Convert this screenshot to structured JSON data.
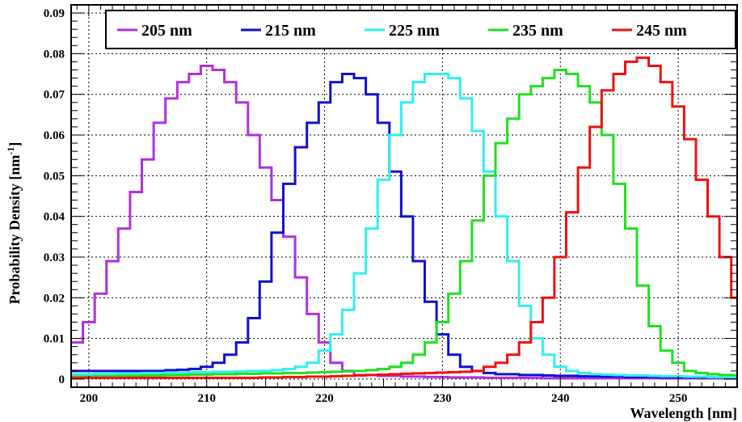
{
  "chart_data": {
    "type": "line",
    "xlabel": "Wavelength [nm]",
    "ylabel": "Probability Density [nm",
    "ylabel_sup": "-1",
    "ylabel_close": "]",
    "xlim": [
      198.5,
      255
    ],
    "ylim": [
      -0.002,
      0.092
    ],
    "x_ticks": [
      200,
      210,
      220,
      230,
      240,
      250
    ],
    "x_tick_labels": [
      "200",
      "210",
      "220",
      "230",
      "240",
      "250"
    ],
    "y_ticks": [
      0,
      0.01,
      0.02,
      0.03,
      0.04,
      0.05,
      0.06,
      0.07,
      0.08,
      0.09
    ],
    "y_tick_labels": [
      "0",
      "0.01",
      "0.02",
      "0.03",
      "0.04",
      "0.05",
      "0.06",
      "0.07",
      "0.08",
      "0.09"
    ],
    "grid": true,
    "legend_position": "top",
    "bin_width": 1,
    "x_start": 198.5,
    "series": [
      {
        "name": "205 nm",
        "color": "#B030E0",
        "values": [
          0.009,
          0.014,
          0.021,
          0.029,
          0.037,
          0.046,
          0.054,
          0.063,
          0.069,
          0.073,
          0.075,
          0.077,
          0.076,
          0.073,
          0.068,
          0.06,
          0.052,
          0.044,
          0.035,
          0.025,
          0.016,
          0.009,
          0.004,
          0.002,
          0.001,
          0.001,
          0.0008,
          0.0008,
          0.0006,
          0.0006,
          0.0005,
          0.0005,
          0.0004,
          0.0004,
          0.0004,
          0.0003,
          0.0003,
          0.0003,
          0.0003,
          0.0003,
          0.0002,
          0.0002,
          0.0002,
          0.0002,
          0.0002,
          0.0002,
          0.0002,
          0.0002,
          0.0002,
          0.0002,
          0.0002,
          0.0002,
          0.0002,
          0.0002,
          0.0002,
          0.0002,
          0.0002
        ]
      },
      {
        "name": "215 nm",
        "color": "#1010D0",
        "values": [
          0.002,
          0.002,
          0.002,
          0.002,
          0.002,
          0.002,
          0.002,
          0.002,
          0.0022,
          0.0023,
          0.0025,
          0.003,
          0.004,
          0.006,
          0.009,
          0.015,
          0.024,
          0.036,
          0.048,
          0.057,
          0.063,
          0.068,
          0.073,
          0.075,
          0.074,
          0.07,
          0.063,
          0.051,
          0.04,
          0.029,
          0.019,
          0.011,
          0.006,
          0.003,
          0.002,
          0.0015,
          0.0012,
          0.0012,
          0.001,
          0.001,
          0.0009,
          0.0008,
          0.0008,
          0.0007,
          0.0007,
          0.0006,
          0.0006,
          0.0005,
          0.0005,
          0.0005,
          0.0004,
          0.0004,
          0.0004,
          0.0004,
          0.0004,
          0.0004,
          0.0004
        ]
      },
      {
        "name": "225 nm",
        "color": "#30F0F0",
        "values": [
          0.0012,
          0.0012,
          0.0013,
          0.0013,
          0.0014,
          0.0014,
          0.0015,
          0.0015,
          0.0016,
          0.0016,
          0.0017,
          0.0017,
          0.0018,
          0.0018,
          0.0019,
          0.002,
          0.002,
          0.0022,
          0.0025,
          0.003,
          0.004,
          0.007,
          0.011,
          0.017,
          0.026,
          0.037,
          0.049,
          0.06,
          0.068,
          0.073,
          0.075,
          0.075,
          0.074,
          0.069,
          0.061,
          0.051,
          0.04,
          0.029,
          0.018,
          0.01,
          0.006,
          0.003,
          0.002,
          0.0015,
          0.0012,
          0.0011,
          0.001,
          0.0009,
          0.0009,
          0.0008,
          0.0007,
          0.0007,
          0.0006,
          0.0006,
          0.0005,
          0.0005,
          0.0005
        ]
      },
      {
        "name": "235 nm",
        "color": "#20E020",
        "values": [
          0.0006,
          0.0006,
          0.0007,
          0.0007,
          0.0008,
          0.0008,
          0.0009,
          0.0009,
          0.001,
          0.001,
          0.0011,
          0.0011,
          0.0012,
          0.0012,
          0.0013,
          0.0013,
          0.0014,
          0.0014,
          0.0015,
          0.0015,
          0.0016,
          0.0017,
          0.0018,
          0.0019,
          0.002,
          0.0022,
          0.0025,
          0.003,
          0.004,
          0.006,
          0.009,
          0.014,
          0.021,
          0.029,
          0.039,
          0.05,
          0.058,
          0.064,
          0.07,
          0.072,
          0.074,
          0.076,
          0.075,
          0.072,
          0.068,
          0.06,
          0.048,
          0.037,
          0.023,
          0.013,
          0.007,
          0.004,
          0.002,
          0.0015,
          0.0012,
          0.001,
          0.001
        ]
      },
      {
        "name": "245 nm",
        "color": "#F01010",
        "values": [
          0.0003,
          0.0003,
          0.0003,
          0.0003,
          0.0003,
          0.0003,
          0.0003,
          0.0003,
          0.0003,
          0.0003,
          0.0003,
          0.0003,
          0.0003,
          0.0003,
          0.0003,
          0.0003,
          0.0004,
          0.0004,
          0.0005,
          0.0005,
          0.0006,
          0.0006,
          0.0007,
          0.0008,
          0.0009,
          0.001,
          0.0011,
          0.0012,
          0.0013,
          0.0014,
          0.0015,
          0.0016,
          0.0017,
          0.0018,
          0.002,
          0.003,
          0.004,
          0.006,
          0.009,
          0.014,
          0.02,
          0.03,
          0.041,
          0.052,
          0.062,
          0.071,
          0.075,
          0.078,
          0.079,
          0.077,
          0.073,
          0.067,
          0.059,
          0.049,
          0.04,
          0.03,
          0.02
        ]
      }
    ]
  }
}
